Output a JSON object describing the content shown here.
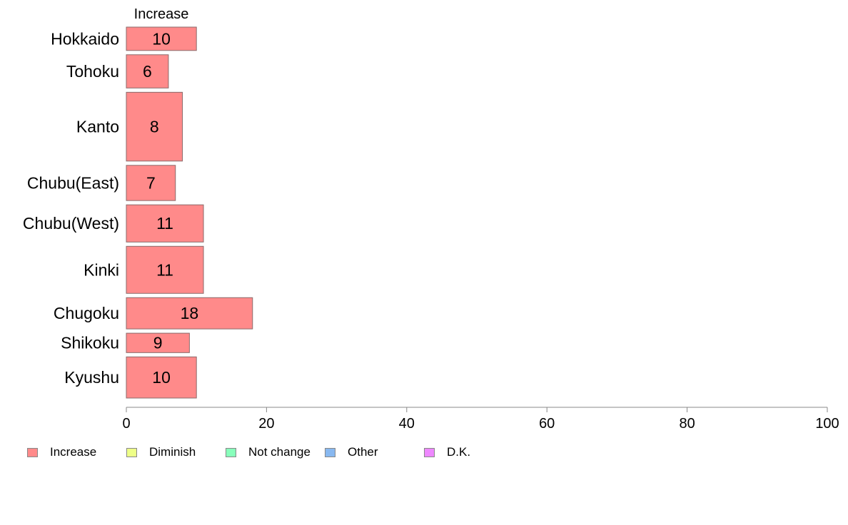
{
  "chart_data": {
    "type": "bar",
    "orientation": "horizontal",
    "series_label": "Increase",
    "categories": [
      "Hokkaido",
      "Tohoku",
      "Kanto",
      "Chubu(East)",
      "Chubu(West)",
      "Kinki",
      "Chugoku",
      "Shikoku",
      "Kyushu"
    ],
    "series": [
      {
        "name": "Increase",
        "color": "#ff8a8a",
        "values": [
          10,
          6,
          8,
          7,
          11,
          11,
          18,
          9,
          10
        ]
      }
    ],
    "row_weights": [
      0.7,
      0.95,
      1.85,
      1.0,
      1.05,
      1.3,
      0.9,
      0.6,
      1.15
    ],
    "xlim": [
      0,
      100
    ],
    "xticks": [
      0,
      20,
      40,
      60,
      80,
      100
    ],
    "grid": false,
    "legend_position": "bottom-left"
  },
  "legend": [
    {
      "label": "Increase",
      "color": "#ff8a8a"
    },
    {
      "label": "Diminish",
      "color": "#eeff88"
    },
    {
      "label": "Not change",
      "color": "#88ffbb"
    },
    {
      "label": "Other",
      "color": "#88b8f0"
    },
    {
      "label": "D.K.",
      "color": "#ee88ff"
    }
  ]
}
